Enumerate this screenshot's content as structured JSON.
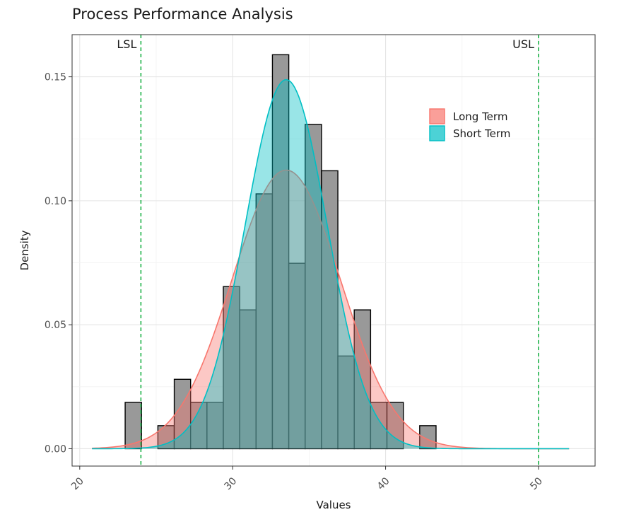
{
  "chart_data": {
    "type": "histogram",
    "title": "Process Performance Analysis",
    "xlabel": "Values",
    "ylabel": "Density",
    "xlim": [
      19.5,
      53.7
    ],
    "ylim": [
      -0.007,
      0.167
    ],
    "x_ticks": [
      20,
      30,
      40,
      50
    ],
    "x_tick_labels": [
      "20",
      "30",
      "40",
      "50"
    ],
    "y_ticks": [
      0.0,
      0.05,
      0.1,
      0.15
    ],
    "y_tick_labels": [
      "0.00",
      "0.05",
      "0.10",
      "0.15"
    ],
    "grid": true,
    "histogram": {
      "bin_width": 1.07,
      "bins": [
        {
          "start": 22.97,
          "density": 0.0187
        },
        {
          "start": 24.04,
          "density": 0.0
        },
        {
          "start": 25.11,
          "density": 0.0093
        },
        {
          "start": 26.18,
          "density": 0.028
        },
        {
          "start": 27.25,
          "density": 0.0187
        },
        {
          "start": 28.32,
          "density": 0.0187
        },
        {
          "start": 29.39,
          "density": 0.0654
        },
        {
          "start": 30.46,
          "density": 0.056
        },
        {
          "start": 31.53,
          "density": 0.1028
        },
        {
          "start": 32.6,
          "density": 0.1589
        },
        {
          "start": 33.67,
          "density": 0.0748
        },
        {
          "start": 34.74,
          "density": 0.1308
        },
        {
          "start": 35.81,
          "density": 0.1121
        },
        {
          "start": 36.88,
          "density": 0.0374
        },
        {
          "start": 37.95,
          "density": 0.056
        },
        {
          "start": 39.02,
          "density": 0.0187
        },
        {
          "start": 40.09,
          "density": 0.0187
        },
        {
          "start": 41.16,
          "density": 0.0
        },
        {
          "start": 42.23,
          "density": 0.0093
        }
      ],
      "fill": "#999999",
      "stroke": "#000000"
    },
    "series": [
      {
        "name": "Long Term",
        "type": "normal-density",
        "mean": 33.5,
        "sd": 3.55,
        "x_range": [
          20.8,
          52.0
        ],
        "color": "#F8766D"
      },
      {
        "name": "Short Term",
        "type": "normal-density",
        "mean": 33.5,
        "sd": 2.68,
        "x_range": [
          20.8,
          52.0
        ],
        "color": "#00BFC4"
      }
    ],
    "limits": [
      {
        "label": "LSL",
        "value": 24.0,
        "color": "#1EB34A"
      },
      {
        "label": "USL",
        "value": 50.0,
        "color": "#1EB34A"
      }
    ],
    "legend": {
      "position": "top-right",
      "entries": [
        "Long Term",
        "Short Term"
      ]
    }
  }
}
